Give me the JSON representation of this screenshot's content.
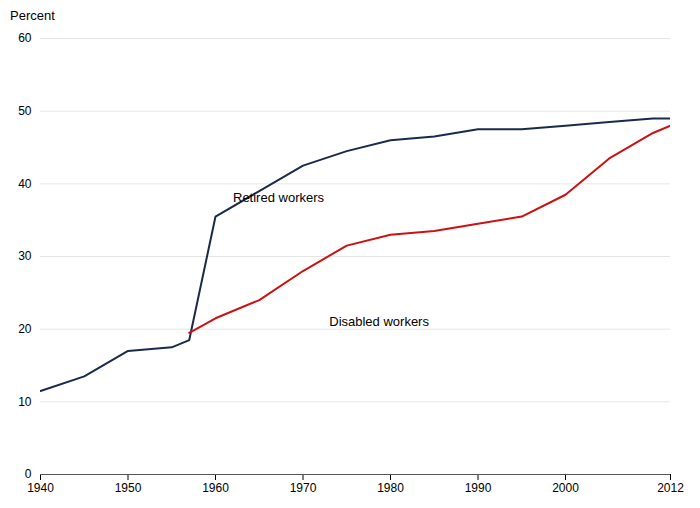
{
  "chart_data": {
    "type": "line",
    "ylabel": "Percent",
    "series": [
      {
        "name": "Retired workers",
        "color": "#1b2a4a",
        "x": [
          1940,
          1945,
          1950,
          1955,
          1957,
          1960,
          1965,
          1970,
          1975,
          1980,
          1985,
          1990,
          1995,
          2000,
          2005,
          2010,
          2012
        ],
        "values": [
          11.5,
          13.5,
          17.0,
          17.5,
          18.5,
          35.5,
          39.0,
          42.5,
          44.5,
          46.0,
          46.5,
          47.5,
          47.5,
          48.0,
          48.5,
          49.0,
          49.0
        ]
      },
      {
        "name": "Disabled workers",
        "color": "#cc1111",
        "x": [
          1957,
          1960,
          1965,
          1970,
          1975,
          1980,
          1985,
          1990,
          1995,
          2000,
          2005,
          2010,
          2012
        ],
        "values": [
          19.5,
          21.5,
          24.0,
          28.0,
          31.5,
          33.0,
          33.5,
          34.5,
          35.5,
          38.5,
          43.5,
          47.0,
          48.0
        ]
      }
    ],
    "annotations": [
      {
        "text": "Retired workers",
        "x": 1962,
        "y": 37.5
      },
      {
        "text": "Disabled workers",
        "x": 1973,
        "y": 20.5
      }
    ],
    "xlim": [
      1940,
      2012
    ],
    "xticks": [
      1940,
      1950,
      1960,
      1970,
      1980,
      1990,
      2000,
      2012
    ],
    "ylim": [
      0,
      60
    ],
    "yticks": [
      0,
      10,
      20,
      30,
      40,
      50,
      60
    ],
    "grid": true
  }
}
